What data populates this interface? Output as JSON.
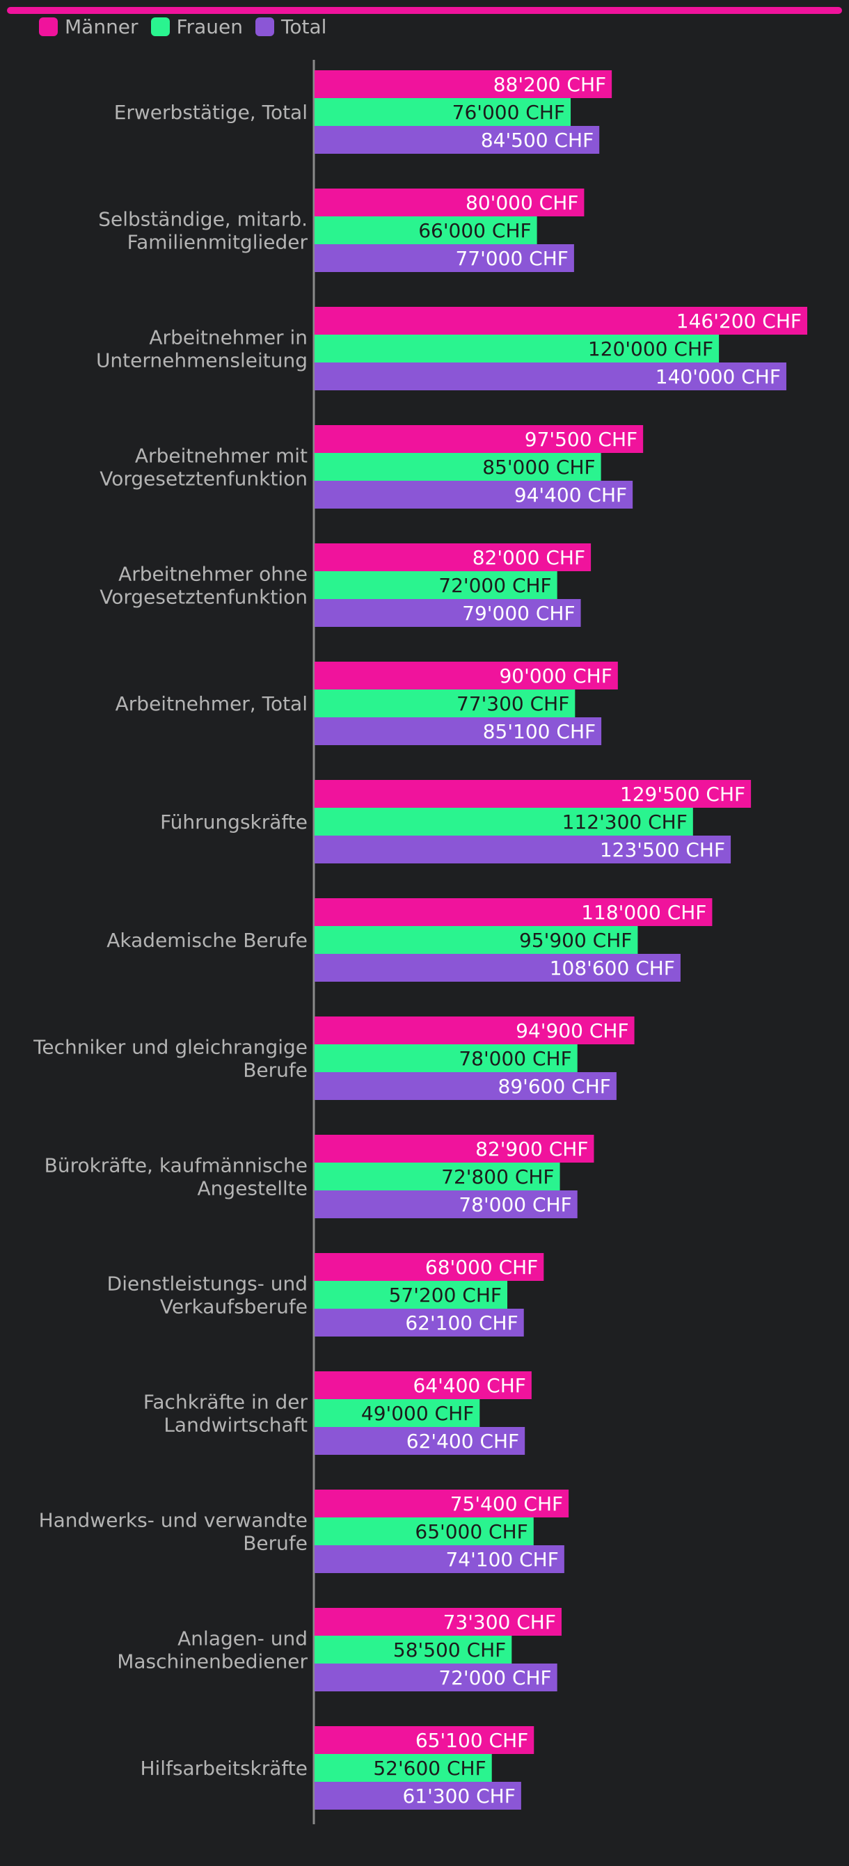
{
  "chart_data": {
    "type": "bar",
    "orientation": "horizontal",
    "unit": "CHF",
    "title": "",
    "xlabel": "",
    "ylabel": "",
    "xlim": [
      0,
      150000
    ],
    "grid": false,
    "legend_position": "top-left",
    "categories": [
      "Erwerbstätige, Total",
      "Selbständige, mitarb. Familienmitglieder",
      "Arbeitnehmer in Unternehmensleitung",
      "Arbeitnehmer mit Vorgesetztenfunktion",
      "Arbeitnehmer ohne Vorgesetztenfunktion",
      "Arbeitnehmer, Total",
      "Führungskräfte",
      "Akademische Berufe",
      "Techniker und gleichrangige Berufe",
      "Bürokräfte, kaufmännische Angestellte",
      "Dienstleistungs- und Verkaufsberufe",
      "Fachkräfte in der Landwirtschaft",
      "Handwerks- und verwandte Berufe",
      "Anlagen- und Maschinenbediener",
      "Hilfsarbeitskräfte"
    ],
    "category_lines": [
      [
        "Erwerbstätige, Total"
      ],
      [
        "Selbständige, mitarb.",
        "Familienmitglieder"
      ],
      [
        "Arbeitnehmer in",
        "Unternehmensleitung"
      ],
      [
        "Arbeitnehmer mit",
        "Vorgesetztenfunktion"
      ],
      [
        "Arbeitnehmer ohne",
        "Vorgesetztenfunktion"
      ],
      [
        "Arbeitnehmer, Total"
      ],
      [
        "Führungskräfte"
      ],
      [
        "Akademische Berufe"
      ],
      [
        "Techniker und gleichrangige",
        "Berufe"
      ],
      [
        "Bürokräfte, kaufmännische",
        "Angestellte"
      ],
      [
        "Dienstleistungs- und",
        "Verkaufsberufe"
      ],
      [
        "Fachkräfte in der",
        "Landwirtschaft"
      ],
      [
        "Handwerks- und verwandte",
        "Berufe"
      ],
      [
        "Anlagen- und",
        "Maschinenbediener"
      ],
      [
        "Hilfsarbeitskräfte"
      ]
    ],
    "series": [
      {
        "name": "Männer",
        "color": "#f0139c",
        "label_color": "#ffffff",
        "values": [
          88200,
          80000,
          146200,
          97500,
          82000,
          90000,
          129500,
          118000,
          94900,
          82900,
          68000,
          64400,
          75400,
          73300,
          65100
        ],
        "labels": [
          "88'200 CHF",
          "80'000 CHF",
          "146'200 CHF",
          "97'500 CHF",
          "82'000 CHF",
          "90'000 CHF",
          "129'500 CHF",
          "118'000 CHF",
          "94'900 CHF",
          "82'900 CHF",
          "68'000 CHF",
          "64'400 CHF",
          "75'400 CHF",
          "73'300 CHF",
          "65'100 CHF"
        ]
      },
      {
        "name": "Frauen",
        "color": "#2af48f",
        "label_color": "#1b1b1b",
        "values": [
          76000,
          66000,
          120000,
          85000,
          72000,
          77300,
          112300,
          95900,
          78000,
          72800,
          57200,
          49000,
          65000,
          58500,
          52600
        ],
        "labels": [
          "76'000 CHF",
          "66'000 CHF",
          "120'000 CHF",
          "85'000 CHF",
          "72'000 CHF",
          "77'300 CHF",
          "112'300 CHF",
          "95'900 CHF",
          "78'000 CHF",
          "72'800 CHF",
          "57'200 CHF",
          "49'000 CHF",
          "65'000 CHF",
          "58'500 CHF",
          "52'600 CHF"
        ]
      },
      {
        "name": "Total",
        "color": "#8b56d6",
        "label_color": "#ffffff",
        "values": [
          84500,
          77000,
          140000,
          94400,
          79000,
          85100,
          123500,
          108600,
          89600,
          78000,
          62100,
          62400,
          74100,
          72000,
          61300
        ],
        "labels": [
          "84'500 CHF",
          "77'000 CHF",
          "140'000 CHF",
          "94'400 CHF",
          "79'000 CHF",
          "85'100 CHF",
          "123'500 CHF",
          "108'600 CHF",
          "89'600 CHF",
          "78'000 CHF",
          "62'100 CHF",
          "62'400 CHF",
          "74'100 CHF",
          "72'000 CHF",
          "61'300 CHF"
        ]
      }
    ]
  }
}
